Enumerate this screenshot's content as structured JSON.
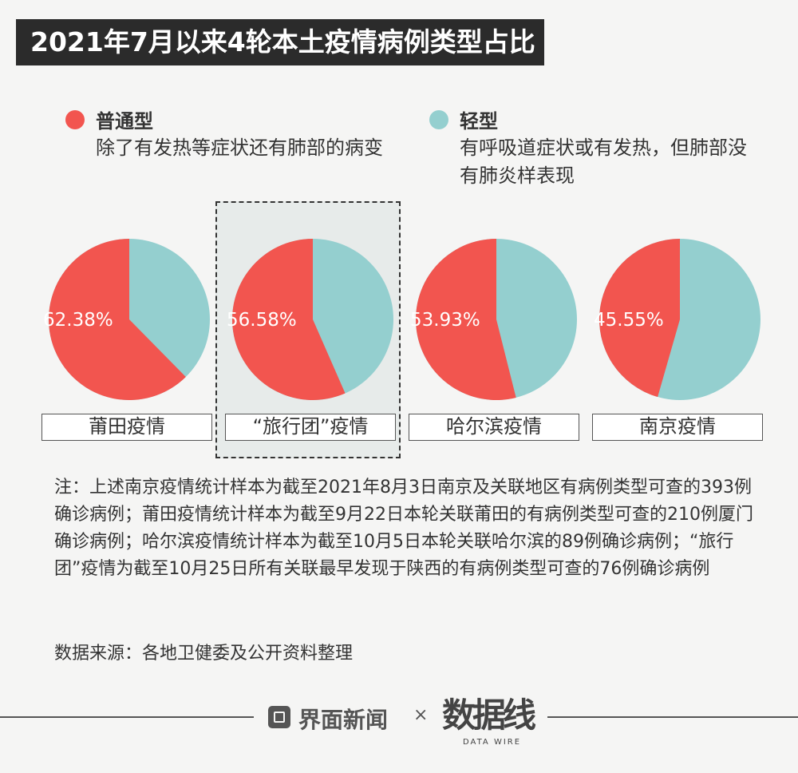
{
  "title": "2021年7月以来4轮本土疫情病例类型占比",
  "legend": [
    {
      "name": "普通型",
      "description": "除了有发热等症状还有肺部的病变",
      "color": "#f2554f"
    },
    {
      "name": "轻型",
      "description": "有呼吸道症状或有发热，但肺部没有肺炎样表现",
      "color": "#94cfcf"
    }
  ],
  "chart_data": {
    "type": "pie",
    "series_names": [
      "普通型",
      "轻型"
    ],
    "colors": {
      "普通型": "#f2554f",
      "轻型": "#94cfcf"
    },
    "pies": [
      {
        "name": "莆田疫情",
        "普通型": 62.38,
        "轻型": 37.62,
        "label": "62.38%"
      },
      {
        "name": "“旅行团”疫情",
        "普通型": 56.58,
        "轻型": 43.42,
        "label": "56.58%",
        "highlighted": true
      },
      {
        "name": "哈尔滨疫情",
        "普通型": 53.93,
        "轻型": 46.07,
        "label": "53.93%"
      },
      {
        "name": "南京疫情",
        "普通型": 45.55,
        "轻型": 54.45,
        "label": "45.55%"
      }
    ]
  },
  "note": "注：上述南京疫情统计样本为截至2021年8月3日南京及关联地区有病例类型可查的393例确诊病例；莆田疫情统计样本为截至9月22日本轮关联莆田的有病例类型可查的210例厦门确诊病例；哈尔滨疫情统计样本为截至10月5日本轮关联哈尔滨的89例确诊病例；“旅行团”疫情为截至10月25日所有关联最早发现于陕西的有病例类型可查的76例确诊病例",
  "source": "数据来源：各地卫健委及公开资料整理",
  "footer": {
    "brand": "界面新闻",
    "times": "×",
    "partner": "数据线",
    "partner_sub": "DATA WIRE"
  }
}
